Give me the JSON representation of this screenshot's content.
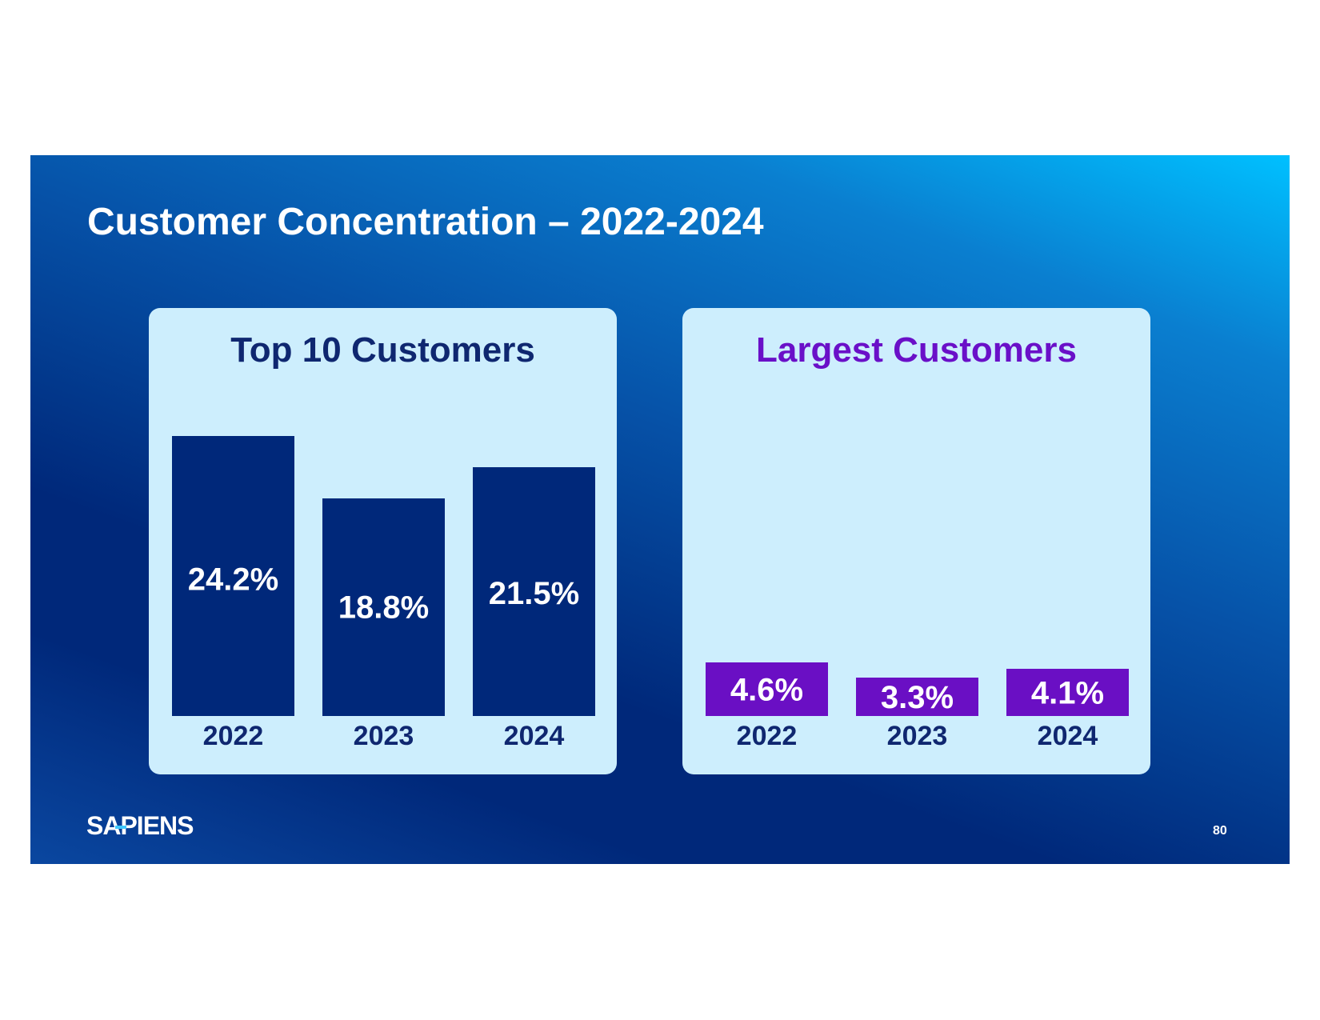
{
  "slide": {
    "title": "Customer Concentration – 2022-2024",
    "logo_text": "SAPIENS",
    "page_number": "80"
  },
  "colors": {
    "top10_bar": "#00287a",
    "largest_bar": "#6a0fc4",
    "top10_title": "#0f2770",
    "largest_title": "#6a10c8",
    "panel_bg": "#cdeefd"
  },
  "chart_data": [
    {
      "type": "bar",
      "title": "Top 10 Customers",
      "categories": [
        "2022",
        "2023",
        "2024"
      ],
      "values": [
        24.2,
        18.8,
        21.5
      ],
      "value_labels": [
        "24.2%",
        "18.8%",
        "21.5%"
      ],
      "ylim": [
        0,
        24.2
      ],
      "xlabel": "",
      "ylabel": ""
    },
    {
      "type": "bar",
      "title": "Largest Customers",
      "categories": [
        "2022",
        "2023",
        "2024"
      ],
      "values": [
        4.6,
        3.3,
        4.1
      ],
      "value_labels": [
        "4.6%",
        "3.3%",
        "4.1%"
      ],
      "ylim": [
        0,
        24.2
      ],
      "xlabel": "",
      "ylabel": ""
    }
  ]
}
